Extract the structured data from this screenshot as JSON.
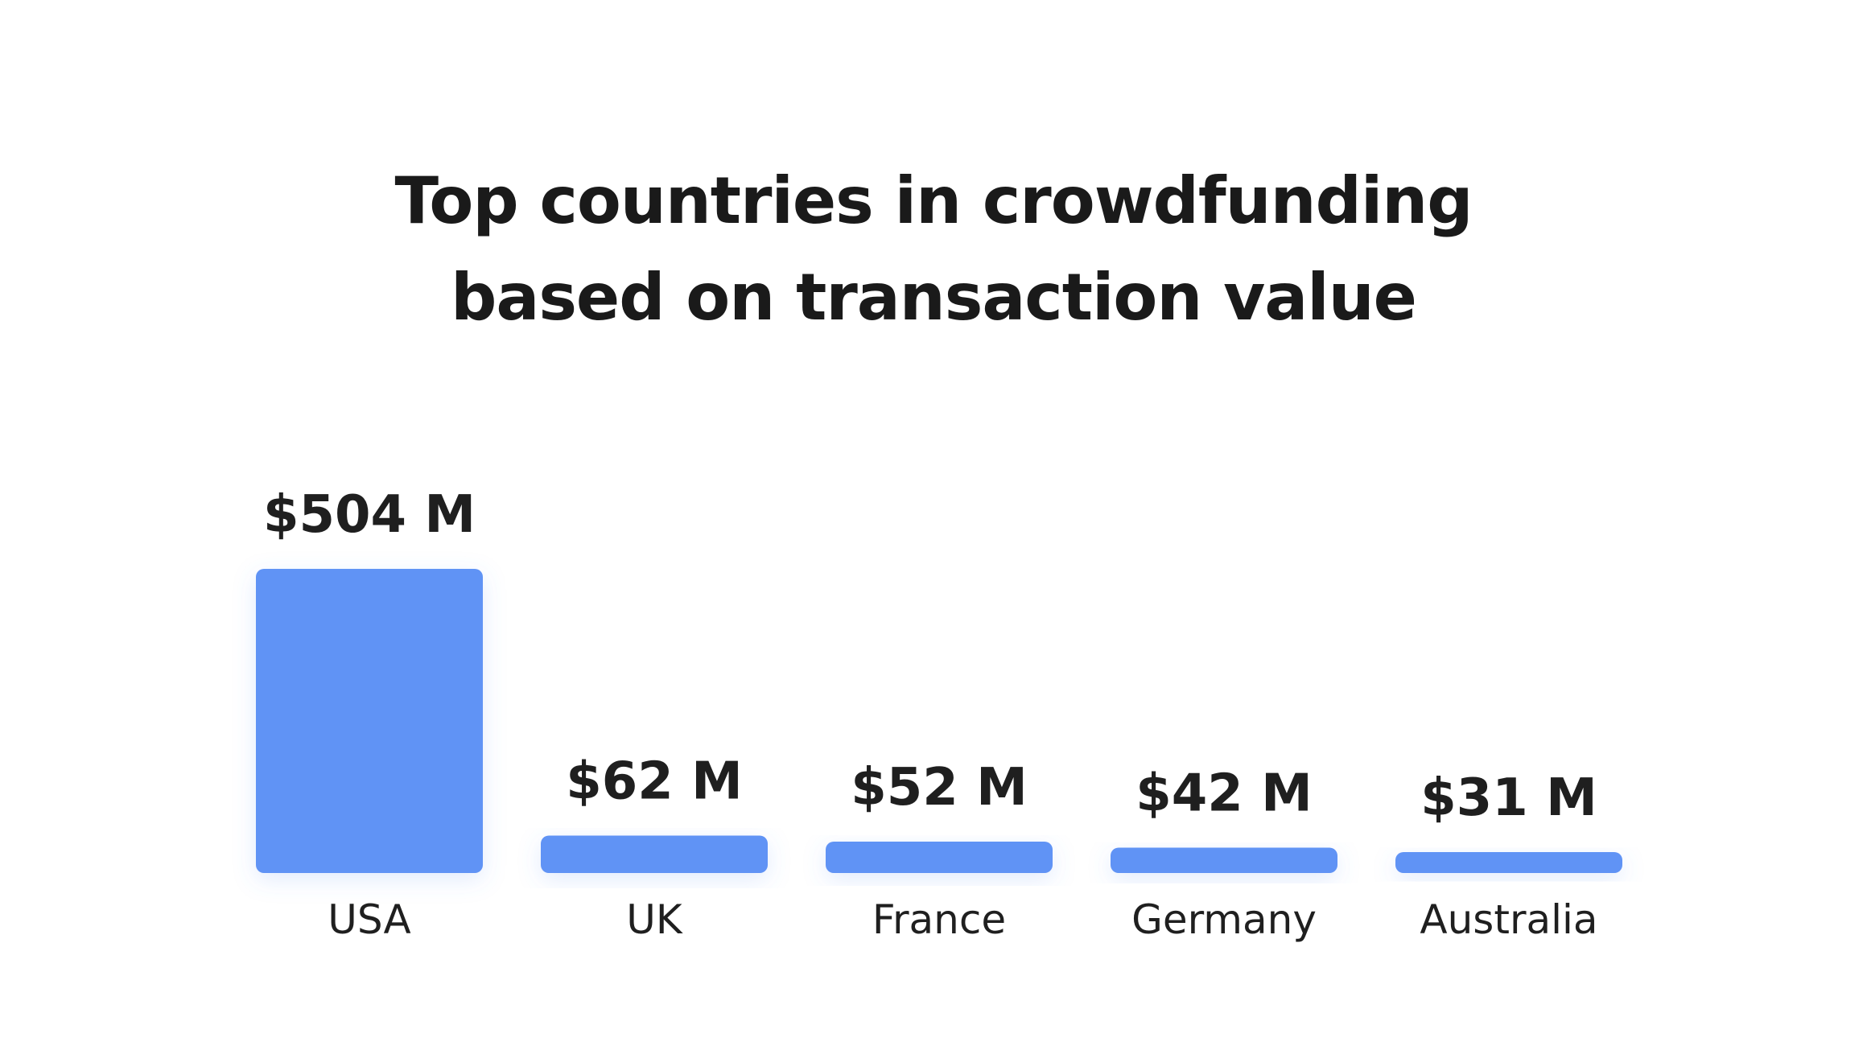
{
  "title_lines": [
    "Top countries in crowdfunding",
    "based on transaction value"
  ],
  "colors": {
    "bar": "#6193f5",
    "text": "#1a1a1a",
    "background": "#ffffff"
  },
  "chart_data": {
    "type": "bar",
    "title": "Top countries in crowdfunding based on transaction value",
    "categories": [
      "USA",
      "UK",
      "France",
      "Germany",
      "Australia"
    ],
    "values": [
      504,
      62,
      52,
      42,
      31
    ],
    "value_labels": [
      "$504 M",
      "$62 M",
      "$52 M",
      "$42 M",
      "$31 M"
    ],
    "xlabel": "",
    "ylabel": "",
    "grid": false,
    "legend": "none"
  }
}
